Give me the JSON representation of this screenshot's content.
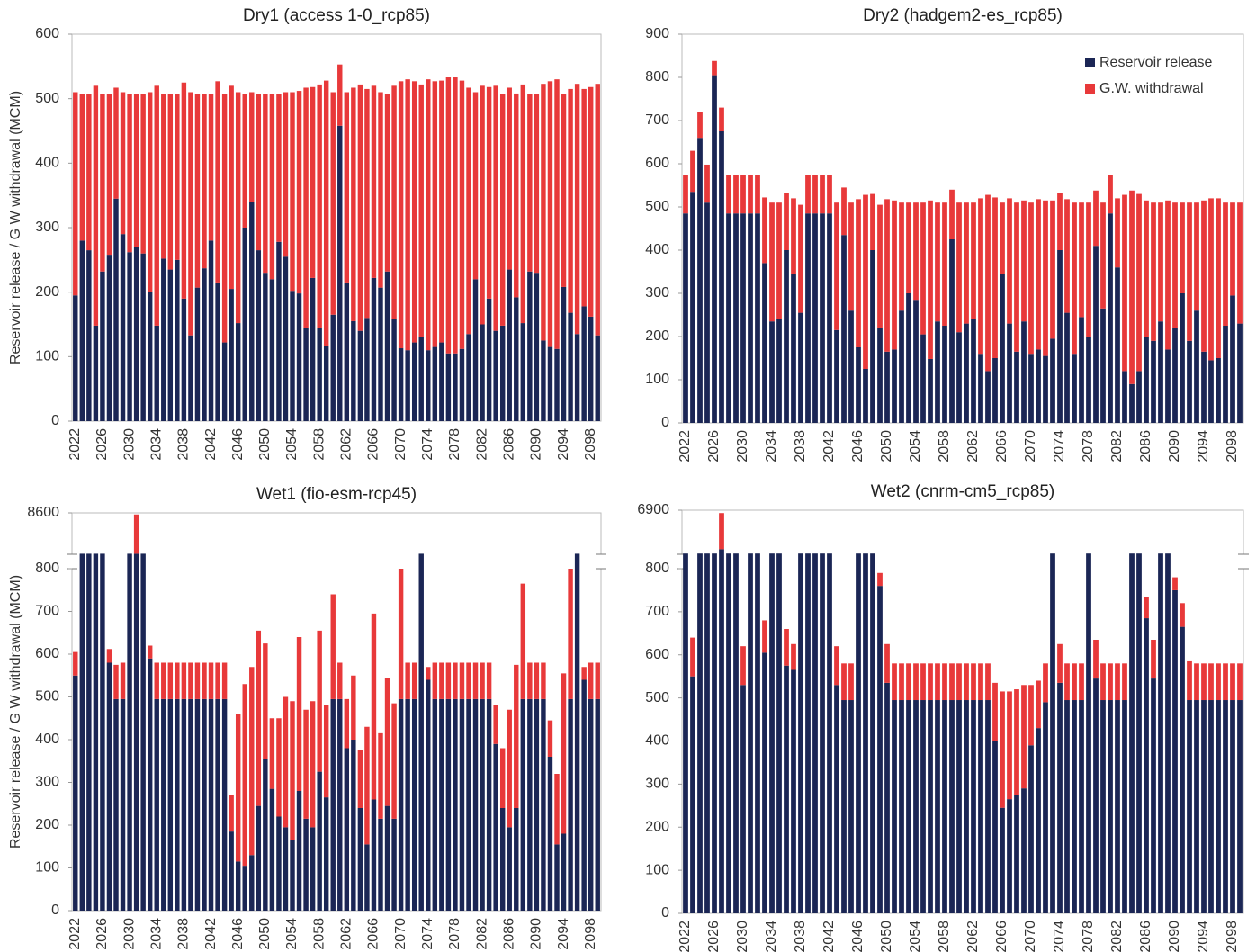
{
  "chart_data": [
    {
      "type": "bar",
      "stacked": true,
      "title": "Dry1 (access 1-0_rcp85)",
      "ylabel": "Reservoir release / G W withdrawal (MCM)",
      "categories": [
        "2022",
        null,
        null,
        null,
        "2026",
        null,
        null,
        null,
        "2030",
        null,
        null,
        null,
        "2034",
        null,
        null,
        null,
        "2038",
        null,
        null,
        null,
        "2042",
        null,
        null,
        null,
        "2046",
        null,
        null,
        null,
        "2050",
        null,
        null,
        null,
        "2054",
        null,
        null,
        null,
        "2058",
        null,
        null,
        null,
        "2062",
        null,
        null,
        null,
        "2066",
        null,
        null,
        null,
        "2070",
        null,
        null,
        null,
        "2074",
        null,
        null,
        null,
        "2078",
        null,
        null,
        null,
        "2082",
        null,
        null,
        null,
        "2086",
        null,
        null,
        null,
        "2090",
        null,
        null,
        null,
        "2094",
        null,
        null,
        null,
        "2098",
        null
      ],
      "series": [
        {
          "color": "#1b2655",
          "values": [
            195,
            280,
            265,
            148,
            232,
            258,
            345,
            290,
            262,
            270,
            260,
            200,
            148,
            252,
            235,
            250,
            190,
            133,
            207,
            237,
            280,
            215,
            122,
            205,
            152,
            300,
            340,
            265,
            230,
            220,
            278,
            255,
            202,
            198,
            145,
            222,
            145,
            117,
            165,
            458,
            215,
            155,
            140,
            160,
            222,
            207,
            232,
            158,
            113,
            110,
            122,
            130,
            110,
            115,
            122,
            105,
            105,
            112,
            135,
            220,
            150,
            190,
            140,
            148,
            235,
            192,
            152,
            232,
            230,
            125,
            115,
            112,
            208,
            168,
            135,
            178,
            162,
            133
          ]
        },
        {
          "color": "#e8393a",
          "values": [
            315,
            227,
            242,
            372,
            275,
            249,
            172,
            220,
            245,
            237,
            247,
            310,
            372,
            255,
            272,
            257,
            335,
            377,
            300,
            270,
            227,
            312,
            385,
            315,
            358,
            207,
            170,
            242,
            277,
            287,
            229,
            255,
            308,
            314,
            372,
            296,
            377,
            411,
            345,
            95,
            295,
            362,
            382,
            355,
            298,
            303,
            275,
            362,
            414,
            420,
            405,
            392,
            420,
            412,
            406,
            428,
            428,
            416,
            382,
            290,
            370,
            328,
            380,
            359,
            282,
            316,
            370,
            275,
            277,
            398,
            412,
            418,
            299,
            347,
            388,
            337,
            356,
            390
          ]
        }
      ],
      "ylim": [
        0,
        600
      ],
      "yticks": [
        0,
        100,
        200,
        300,
        400,
        500,
        600
      ]
    },
    {
      "type": "bar",
      "stacked": true,
      "title": "Dry2 (hadgem2-es_rcp85)",
      "legend": "upper right",
      "categories": [
        "2022",
        null,
        null,
        null,
        "2026",
        null,
        null,
        null,
        "2030",
        null,
        null,
        null,
        "2034",
        null,
        null,
        null,
        "2038",
        null,
        null,
        null,
        "2042",
        null,
        null,
        null,
        "2046",
        null,
        null,
        null,
        "2050",
        null,
        null,
        null,
        "2054",
        null,
        null,
        null,
        "2058",
        null,
        null,
        null,
        "2062",
        null,
        null,
        null,
        "2066",
        null,
        null,
        null,
        "2070",
        null,
        null,
        null,
        "2074",
        null,
        null,
        null,
        "2078",
        null,
        null,
        null,
        "2082",
        null,
        null,
        null,
        "2086",
        null,
        null,
        null,
        "2090",
        null,
        null,
        null,
        "2094",
        null,
        null,
        null,
        "2098",
        null
      ],
      "series": [
        {
          "name": "Reservoir release",
          "color": "#1b2655",
          "values": [
            485,
            535,
            660,
            510,
            805,
            675,
            485,
            485,
            485,
            485,
            485,
            370,
            235,
            240,
            400,
            345,
            255,
            485,
            485,
            485,
            485,
            215,
            435,
            260,
            175,
            125,
            400,
            220,
            165,
            170,
            260,
            300,
            285,
            205,
            148,
            235,
            225,
            425,
            210,
            230,
            240,
            160,
            120,
            150,
            345,
            230,
            165,
            235,
            160,
            170,
            155,
            195,
            400,
            255,
            160,
            245,
            200,
            410,
            265,
            485,
            360,
            120,
            90,
            120,
            200,
            190,
            235,
            170,
            220,
            300,
            190,
            260,
            165,
            145,
            150,
            225,
            295,
            230
          ]
        },
        {
          "name": "G.W. withdrawal",
          "color": "#e8393a",
          "values": [
            90,
            95,
            60,
            88,
            33,
            55,
            90,
            90,
            90,
            90,
            90,
            152,
            275,
            270,
            132,
            175,
            250,
            90,
            90,
            90,
            90,
            295,
            110,
            250,
            343,
            403,
            130,
            285,
            353,
            345,
            250,
            210,
            225,
            305,
            367,
            275,
            285,
            115,
            300,
            280,
            270,
            360,
            408,
            372,
            165,
            290,
            345,
            280,
            350,
            348,
            360,
            320,
            132,
            263,
            350,
            265,
            310,
            128,
            245,
            90,
            160,
            408,
            448,
            410,
            315,
            320,
            275,
            345,
            290,
            210,
            320,
            250,
            350,
            375,
            370,
            285,
            215,
            280
          ]
        }
      ],
      "ylim": [
        0,
        900
      ],
      "yticks": [
        0,
        100,
        200,
        300,
        400,
        500,
        600,
        700,
        800,
        900
      ]
    },
    {
      "type": "bar",
      "stacked": true,
      "title": "Wet1 (fio-esm-rcp45)",
      "ylabel": "Reservoir release / G W withdrawal (MCM)",
      "categories": [
        "2022",
        null,
        null,
        null,
        "2026",
        null,
        null,
        null,
        "2030",
        null,
        null,
        null,
        "2034",
        null,
        null,
        null,
        "2038",
        null,
        null,
        null,
        "2042",
        null,
        null,
        null,
        "2046",
        null,
        null,
        null,
        "2050",
        null,
        null,
        null,
        "2054",
        null,
        null,
        null,
        "2058",
        null,
        null,
        null,
        "2062",
        null,
        null,
        null,
        "2066",
        null,
        null,
        null,
        "2070",
        null,
        null,
        null,
        "2074",
        null,
        null,
        null,
        "2078",
        null,
        null,
        null,
        "2082",
        null,
        null,
        null,
        "2086",
        null,
        null,
        null,
        "2090",
        null,
        null,
        null,
        "2094",
        null,
        null,
        null,
        "2098",
        null
      ],
      "series": [
        {
          "color": "#1b2655",
          "values": [
            550,
            900,
            900,
            900,
            900,
            580,
            495,
            495,
            900,
            900,
            900,
            590,
            495,
            495,
            495,
            495,
            495,
            495,
            495,
            495,
            495,
            495,
            495,
            185,
            115,
            105,
            130,
            245,
            355,
            285,
            220,
            195,
            165,
            280,
            215,
            195,
            325,
            265,
            495,
            495,
            380,
            400,
            240,
            155,
            260,
            215,
            245,
            215,
            495,
            495,
            495,
            900,
            540,
            495,
            495,
            495,
            495,
            495,
            495,
            495,
            495,
            495,
            390,
            240,
            195,
            240,
            495,
            495,
            495,
            495,
            360,
            155,
            180,
            495,
            900,
            540,
            495,
            495
          ]
        },
        {
          "color": "#e8393a",
          "values": [
            55,
            0,
            0,
            0,
            0,
            32,
            80,
            85,
            0,
            7400,
            0,
            30,
            85,
            85,
            85,
            85,
            85,
            85,
            85,
            85,
            85,
            85,
            85,
            85,
            345,
            425,
            440,
            410,
            270,
            165,
            230,
            305,
            325,
            360,
            255,
            295,
            330,
            215,
            245,
            85,
            115,
            150,
            135,
            275,
            435,
            200,
            300,
            270,
            305,
            85,
            85,
            0,
            30,
            85,
            85,
            85,
            85,
            85,
            85,
            85,
            85,
            85,
            90,
            140,
            275,
            335,
            270,
            85,
            85,
            85,
            85,
            165,
            375,
            305,
            0,
            30,
            85,
            85
          ]
        }
      ],
      "ylim": [
        0,
        8600
      ],
      "ybreak": 800,
      "yticks": [
        0,
        100,
        200,
        300,
        400,
        500,
        600,
        700,
        800,
        8600
      ]
    },
    {
      "type": "bar",
      "stacked": true,
      "title": "Wet2 (cnrm-cm5_rcp85)",
      "categories": [
        "2022",
        null,
        null,
        null,
        "2026",
        null,
        null,
        null,
        "2030",
        null,
        null,
        null,
        "2034",
        null,
        null,
        null,
        "2038",
        null,
        null,
        null,
        "2042",
        null,
        null,
        null,
        "2046",
        null,
        null,
        null,
        "2050",
        null,
        null,
        null,
        "2054",
        null,
        null,
        null,
        "2058",
        null,
        null,
        null,
        "2062",
        null,
        null,
        null,
        "2066",
        null,
        null,
        null,
        "2070",
        null,
        null,
        null,
        "2074",
        null,
        null,
        null,
        "2078",
        null,
        null,
        null,
        "2082",
        null,
        null,
        null,
        "2086",
        null,
        null,
        null,
        "2090",
        null,
        null,
        null,
        "2094",
        null,
        null,
        null,
        "2098",
        null
      ],
      "series": [
        {
          "color": "#1b2655",
          "values": [
            900,
            550,
            900,
            900,
            900,
            1500,
            900,
            900,
            530,
            900,
            900,
            605,
            900,
            900,
            575,
            565,
            900,
            900,
            900,
            900,
            900,
            530,
            495,
            495,
            900,
            900,
            900,
            760,
            535,
            495,
            495,
            495,
            495,
            495,
            495,
            495,
            495,
            495,
            495,
            495,
            495,
            495,
            495,
            400,
            245,
            265,
            275,
            290,
            390,
            430,
            490,
            900,
            535,
            495,
            495,
            495,
            900,
            545,
            495,
            495,
            495,
            495,
            900,
            900,
            685,
            545,
            900,
            900,
            750,
            665,
            495,
            495,
            495,
            495,
            495,
            495,
            495,
            495
          ]
        },
        {
          "color": "#e8393a",
          "values": [
            0,
            90,
            0,
            0,
            0,
            5000,
            0,
            0,
            90,
            0,
            0,
            75,
            0,
            0,
            85,
            60,
            0,
            0,
            0,
            0,
            0,
            90,
            85,
            85,
            0,
            0,
            0,
            30,
            90,
            85,
            85,
            85,
            85,
            85,
            85,
            85,
            85,
            85,
            85,
            85,
            85,
            85,
            85,
            135,
            270,
            250,
            245,
            240,
            140,
            110,
            90,
            0,
            90,
            85,
            85,
            85,
            0,
            90,
            85,
            85,
            85,
            85,
            0,
            0,
            50,
            90,
            0,
            0,
            30,
            55,
            90,
            85,
            85,
            85,
            85,
            85,
            85,
            85
          ]
        }
      ],
      "ylim": [
        0,
        6900
      ],
      "ybreak": 800,
      "yticks": [
        0,
        100,
        200,
        300,
        400,
        500,
        600,
        700,
        800,
        6900
      ]
    }
  ]
}
